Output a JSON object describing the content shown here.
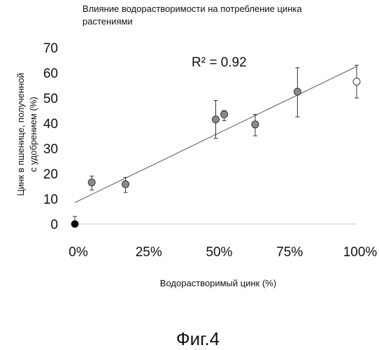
{
  "chart_data": {
    "type": "scatter",
    "title_lines": [
      "Влияние водорастворимости на потребление цинка",
      "растениями"
    ],
    "xlabel": "Водорастворимый цинк (%)",
    "ylabel_lines": [
      "Цинк в пшенице, полученной",
      "с удобрением (%)"
    ],
    "x_ticks": [
      "0%",
      "25%",
      "50%",
      "75%",
      "100%"
    ],
    "y_ticks": [
      "0",
      "10",
      "20",
      "30",
      "40",
      "50",
      "60",
      "70"
    ],
    "xlim": [
      0,
      100
    ],
    "ylim": [
      0,
      70
    ],
    "annotation": "R² = 0.92",
    "caption": "Фиг.4",
    "grid": false,
    "trendline": {
      "x": [
        0,
        100
      ],
      "y": [
        8.5,
        62.5
      ]
    },
    "points": [
      {
        "x": 0,
        "y": 0,
        "err": [
          0,
          3
        ],
        "fill": "#000000"
      },
      {
        "x": 6,
        "y": 16.5,
        "err": [
          13.5,
          19
        ],
        "fill": "#8a8a8a"
      },
      {
        "x": 18,
        "y": 15.8,
        "err": [
          12.5,
          18.5
        ],
        "fill": "#8a8a8a"
      },
      {
        "x": 50,
        "y": 41.5,
        "err": [
          34,
          49
        ],
        "fill": "#8a8a8a"
      },
      {
        "x": 53,
        "y": 43.5,
        "err": [
          41,
          45
        ],
        "fill": "#8a8a8a"
      },
      {
        "x": 64,
        "y": 39.5,
        "err": [
          35,
          43.5
        ],
        "fill": "#8a8a8a"
      },
      {
        "x": 79,
        "y": 52.5,
        "err": [
          42.5,
          62
        ],
        "fill": "#8a8a8a"
      },
      {
        "x": 100,
        "y": 56.5,
        "err": [
          50,
          63
        ],
        "fill": "#ffffff"
      }
    ]
  }
}
